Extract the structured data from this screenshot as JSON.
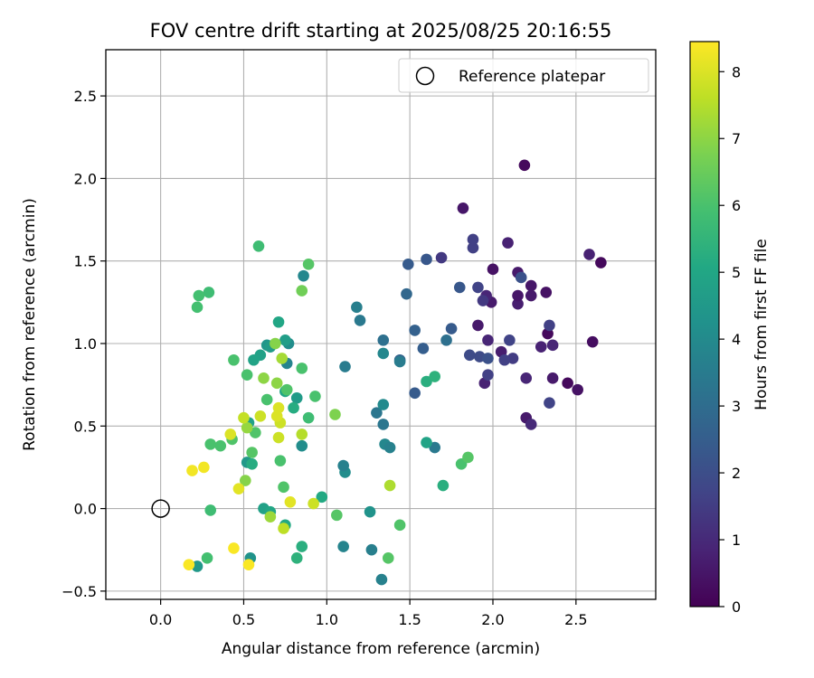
{
  "chart_data": {
    "type": "scatter",
    "title": "FOV centre drift starting at 2025/08/25 20:16:55",
    "xlabel": "Angular distance from reference (arcmin)",
    "ylabel": "Rotation from reference (arcmin)",
    "xlim": [
      -0.33,
      2.98
    ],
    "ylim": [
      -0.55,
      2.78
    ],
    "xticks": [
      "0.0",
      "0.5",
      "1.0",
      "1.5",
      "2.0",
      "2.5"
    ],
    "xtick_values": [
      0,
      0.5,
      1.0,
      1.5,
      2.0,
      2.5
    ],
    "yticks": [
      "−0.5",
      "0.0",
      "0.5",
      "1.0",
      "1.5",
      "2.0",
      "2.5"
    ],
    "ytick_values": [
      -0.5,
      0,
      0.5,
      1.0,
      1.5,
      2.0,
      2.5
    ],
    "grid": true,
    "legend": {
      "position": "top-right",
      "entries": [
        "Reference platepar"
      ]
    },
    "reference_point": {
      "x": 0,
      "y": 0,
      "label": "Reference platepar"
    },
    "colorbar": {
      "label": "Hours from first FF file",
      "min": 0,
      "max": 8.45,
      "colormap": "viridis",
      "ticks": [
        "0",
        "1",
        "2",
        "3",
        "4",
        "5",
        "6",
        "7",
        "8"
      ],
      "tick_values": [
        0,
        1,
        2,
        3,
        4,
        5,
        6,
        7,
        8
      ]
    },
    "point_fields": [
      "x",
      "y",
      "hours"
    ],
    "points": [
      [
        2.19,
        2.08,
        0.2
      ],
      [
        2.65,
        1.49,
        0.2
      ],
      [
        2.6,
        1.01,
        0.3
      ],
      [
        2.45,
        0.76,
        0.2
      ],
      [
        2.51,
        0.72,
        0.4
      ],
      [
        2.33,
        1.06,
        0.2
      ],
      [
        2.32,
        1.31,
        0.4
      ],
      [
        2.23,
        1.35,
        0.5
      ],
      [
        2.23,
        1.29,
        0.6
      ],
      [
        2.15,
        1.24,
        0.7
      ],
      [
        2.15,
        1.29,
        0.5
      ],
      [
        2.15,
        1.43,
        0.6
      ],
      [
        1.99,
        1.25,
        0.6
      ],
      [
        2.0,
        1.45,
        0.4
      ],
      [
        1.96,
        1.29,
        0.9
      ],
      [
        2.09,
        1.61,
        0.8
      ],
      [
        1.82,
        1.82,
        0.5
      ],
      [
        1.91,
        1.11,
        0.6
      ],
      [
        1.97,
        1.02,
        0.9
      ],
      [
        1.95,
        0.76,
        0.8
      ],
      [
        2.05,
        0.95,
        0.7
      ],
      [
        2.2,
        0.55,
        0.6
      ],
      [
        2.23,
        0.51,
        1.0
      ],
      [
        2.2,
        0.79,
        0.9
      ],
      [
        2.29,
        0.98,
        0.8
      ],
      [
        2.36,
        0.99,
        0.9
      ],
      [
        2.36,
        0.79,
        0.6
      ],
      [
        2.58,
        1.54,
        0.8
      ],
      [
        1.69,
        1.52,
        1.4
      ],
      [
        1.94,
        1.26,
        1.4
      ],
      [
        1.88,
        1.58,
        1.6
      ],
      [
        1.88,
        1.63,
        1.6
      ],
      [
        1.91,
        1.34,
        1.7
      ],
      [
        1.92,
        0.92,
        1.9
      ],
      [
        1.86,
        0.93,
        1.9
      ],
      [
        2.12,
        0.91,
        1.5
      ],
      [
        2.07,
        0.9,
        1.6
      ],
      [
        2.1,
        1.02,
        1.7
      ],
      [
        1.97,
        0.81,
        1.6
      ],
      [
        2.34,
        1.11,
        1.6
      ],
      [
        2.34,
        0.64,
        1.7
      ],
      [
        2.17,
        1.4,
        2.1
      ],
      [
        1.6,
        1.51,
        2.3
      ],
      [
        1.49,
        1.48,
        2.4
      ],
      [
        1.8,
        1.34,
        2.3
      ],
      [
        1.75,
        1.09,
        2.4
      ],
      [
        1.97,
        0.91,
        2.1
      ],
      [
        1.58,
        0.97,
        2.5
      ],
      [
        1.53,
        1.08,
        2.6
      ],
      [
        1.53,
        0.7,
        2.4
      ],
      [
        1.44,
        0.9,
        2.7
      ],
      [
        1.48,
        1.3,
        2.8
      ],
      [
        1.72,
        1.02,
        3.1
      ],
      [
        1.65,
        0.37,
        3.4
      ],
      [
        1.34,
        1.02,
        3.1
      ],
      [
        1.3,
        0.58,
        3.3
      ],
      [
        1.34,
        0.51,
        3.3
      ],
      [
        1.44,
        0.89,
        3.5
      ],
      [
        1.35,
        0.39,
        3.9
      ],
      [
        1.38,
        0.37,
        3.7
      ],
      [
        1.18,
        1.22,
        3.6
      ],
      [
        1.2,
        1.14,
        3.4
      ],
      [
        1.11,
        0.86,
        3.5
      ],
      [
        1.34,
        0.94,
        3.9
      ],
      [
        1.34,
        0.63,
        4.0
      ],
      [
        1.11,
        0.22,
        4.1
      ],
      [
        1.1,
        0.26,
        3.7
      ],
      [
        1.26,
        -0.02,
        4.3
      ],
      [
        1.27,
        -0.25,
        3.6
      ],
      [
        1.1,
        -0.23,
        3.8
      ],
      [
        1.33,
        -0.43,
        3.7
      ],
      [
        0.85,
        0.38,
        4.1
      ],
      [
        0.77,
        1.0,
        4.1
      ],
      [
        0.76,
        0.88,
        3.8
      ],
      [
        0.86,
        1.41,
        3.9
      ],
      [
        0.75,
        1.02,
        4.7
      ],
      [
        0.64,
        0.99,
        4.4
      ],
      [
        0.66,
        0.98,
        4.6
      ],
      [
        0.6,
        0.93,
        4.8
      ],
      [
        0.56,
        0.9,
        4.9
      ],
      [
        0.53,
        0.52,
        4.8
      ],
      [
        0.52,
        0.28,
        4.5
      ],
      [
        0.55,
        0.27,
        5.2
      ],
      [
        0.62,
        0.0,
        4.8
      ],
      [
        0.66,
        -0.02,
        5.0
      ],
      [
        0.75,
        -0.1,
        5.1
      ],
      [
        0.82,
        0.67,
        4.6
      ],
      [
        0.8,
        0.61,
        5.2
      ],
      [
        0.75,
        0.71,
        5.0
      ],
      [
        0.97,
        0.07,
        5.1
      ],
      [
        0.71,
        1.13,
        5.0
      ],
      [
        1.6,
        0.77,
        5.3
      ],
      [
        1.65,
        0.8,
        5.4
      ],
      [
        1.6,
        0.4,
        4.9
      ],
      [
        1.7,
        0.14,
        5.3
      ],
      [
        0.22,
        -0.35,
        4.5
      ],
      [
        0.54,
        -0.3,
        4.3
      ],
      [
        0.82,
        -0.3,
        5.4
      ],
      [
        0.85,
        -0.23,
        5.3
      ],
      [
        0.3,
        -0.01,
        5.8
      ],
      [
        0.28,
        -0.3,
        5.9
      ],
      [
        0.29,
        1.31,
        5.8
      ],
      [
        0.23,
        1.29,
        5.9
      ],
      [
        0.22,
        1.22,
        5.9
      ],
      [
        0.59,
        1.59,
        5.8
      ],
      [
        0.44,
        0.9,
        6.0
      ],
      [
        0.52,
        0.81,
        6.0
      ],
      [
        0.43,
        0.42,
        6.1
      ],
      [
        0.36,
        0.38,
        6.0
      ],
      [
        0.3,
        0.39,
        6.0
      ],
      [
        0.57,
        0.46,
        6.1
      ],
      [
        0.55,
        0.34,
        6.2
      ],
      [
        0.72,
        0.29,
        6.0
      ],
      [
        0.64,
        0.66,
        6.0
      ],
      [
        0.74,
        0.13,
        6.1
      ],
      [
        0.76,
        0.72,
        6.1
      ],
      [
        0.89,
        0.55,
        5.8
      ],
      [
        0.93,
        0.68,
        6.0
      ],
      [
        0.85,
        0.85,
        6.0
      ],
      [
        1.06,
        -0.04,
        6.2
      ],
      [
        1.44,
        -0.1,
        6.1
      ],
      [
        1.37,
        -0.3,
        6.2
      ],
      [
        1.81,
        0.27,
        6.0
      ],
      [
        1.85,
        0.31,
        6.2
      ],
      [
        0.89,
        1.48,
        6.2
      ],
      [
        0.85,
        1.32,
        6.6
      ],
      [
        0.69,
        1.0,
        6.9
      ],
      [
        0.62,
        0.79,
        7.0
      ],
      [
        0.7,
        0.76,
        7.0
      ],
      [
        0.73,
        0.91,
        7.3
      ],
      [
        1.05,
        0.57,
        6.8
      ],
      [
        0.51,
        0.17,
        6.9
      ],
      [
        0.52,
        0.49,
        7.1
      ],
      [
        0.66,
        -0.05,
        7.2
      ],
      [
        0.74,
        -0.12,
        7.6
      ],
      [
        1.38,
        0.14,
        7.4
      ],
      [
        0.85,
        0.45,
        7.5
      ],
      [
        0.72,
        0.52,
        7.8
      ],
      [
        0.71,
        0.43,
        7.8
      ],
      [
        0.92,
        0.03,
        7.8
      ],
      [
        0.6,
        0.56,
        7.8
      ],
      [
        0.5,
        0.55,
        7.7
      ],
      [
        0.7,
        0.56,
        8.0
      ],
      [
        0.71,
        0.61,
        8.0
      ],
      [
        0.42,
        0.45,
        8.0
      ],
      [
        0.47,
        0.12,
        8.1
      ],
      [
        0.78,
        0.04,
        8.1
      ],
      [
        0.26,
        0.25,
        8.3
      ],
      [
        0.19,
        0.23,
        8.3
      ],
      [
        0.17,
        -0.34,
        8.4
      ],
      [
        0.44,
        -0.24,
        8.4
      ],
      [
        0.53,
        -0.34,
        8.4
      ]
    ]
  }
}
